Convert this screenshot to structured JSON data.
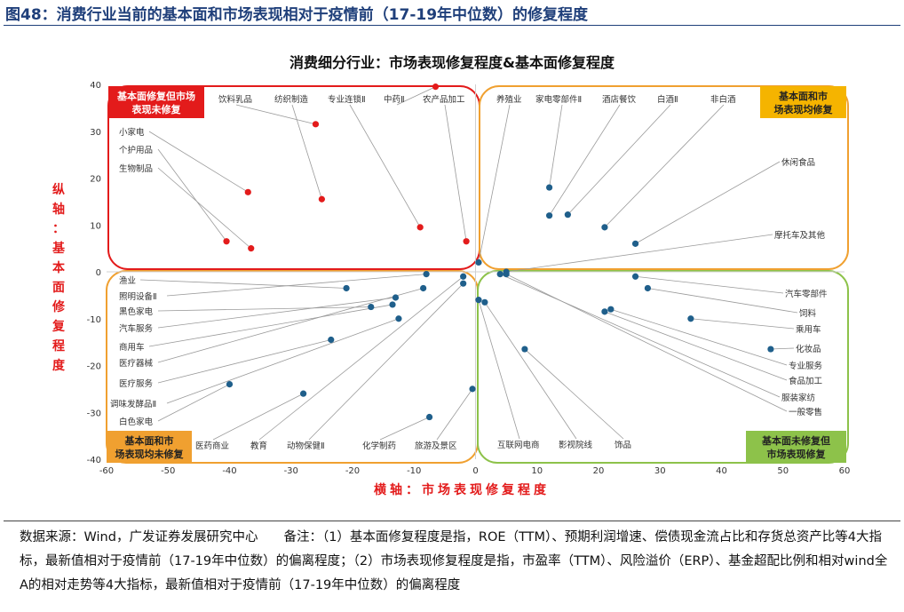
{
  "figure_title": "图48：消费行业当前的基本面和市场表现相对于疫情前（17-19年中位数）的修复程度",
  "notes": "数据来源：Wind，广发证券发展研究中心　　备注：（1）基本面修复程度是指，ROE（TTM）、预期利润增速、偿债现金流占比和存货总资产比等4大指标，最新值相对于疫情前（17-19年中位数）的偏离程度；（2）市场表现修复程度是指，市盈率（TTM）、风险溢价（ERP）、基金超配比例和相对wind全A的相对走势等4大指标，最新值相对于疫情前（17-19年中位数）的偏离程度",
  "colors": {
    "red": "#e31b1b",
    "blue": "#1f5f8b",
    "orange": "#f0a030",
    "green": "#8dc24a",
    "title_blue": "#1f3f7a"
  },
  "chart_data": {
    "type": "scatter",
    "title": "消费细分行业：市场表现修复程度&基本面修复程度",
    "xlabel": "横轴：市场表现修复程度",
    "ylabel": "纵轴：基本面修复程度",
    "xlim": [
      -60,
      60
    ],
    "ylim": [
      -40,
      40
    ],
    "xticks": [
      -60,
      -50,
      -40,
      -30,
      -20,
      -10,
      0,
      10,
      20,
      30,
      40,
      50,
      60
    ],
    "yticks": [
      -40,
      -30,
      -20,
      -10,
      0,
      10,
      20,
      30,
      40
    ],
    "grid": false,
    "quadrants": [
      {
        "label": "基本面修复但市场表现未修复",
        "color": "red"
      },
      {
        "label": "基本面和市场表现均修复",
        "color": "orange"
      },
      {
        "label": "基本面和市场表现均未修复",
        "color": "orange"
      },
      {
        "label": "基本面未修复但市场表现修复",
        "color": "green"
      }
    ],
    "points": [
      {
        "name": "饮料乳品",
        "x": -26,
        "y": 31.5,
        "color": "red"
      },
      {
        "name": "纺织制造",
        "x": -25,
        "y": 15.5,
        "color": "red"
      },
      {
        "name": "专业连锁Ⅱ",
        "x": -9,
        "y": 9.5,
        "color": "red"
      },
      {
        "name": "中药Ⅱ",
        "x": -6.5,
        "y": 39.5,
        "color": "red"
      },
      {
        "name": "农产品加工",
        "x": -1.5,
        "y": 6.5,
        "color": "red"
      },
      {
        "name": "小家电",
        "x": -37,
        "y": 17,
        "color": "red"
      },
      {
        "name": "个护用品",
        "x": -40.5,
        "y": 6.5,
        "color": "red"
      },
      {
        "name": "生物制品",
        "x": -36.5,
        "y": 5,
        "color": "red"
      },
      {
        "name": "养殖业",
        "x": 0.5,
        "y": 2,
        "color": "blue"
      },
      {
        "name": "家电零部件Ⅱ",
        "x": 12,
        "y": 18,
        "color": "blue"
      },
      {
        "name": "酒店餐饮",
        "x": 12,
        "y": 12,
        "color": "blue"
      },
      {
        "name": "白酒Ⅱ",
        "x": 15,
        "y": 12.2,
        "color": "blue"
      },
      {
        "name": "非白酒",
        "x": 21,
        "y": 9.5,
        "color": "blue"
      },
      {
        "name": "休闲食品",
        "x": 26,
        "y": 6,
        "color": "blue"
      },
      {
        "name": "摩托车及其他",
        "x": 5,
        "y": 0,
        "color": "blue"
      },
      {
        "name": "渔业",
        "x": -21,
        "y": -3.5,
        "color": "blue"
      },
      {
        "name": "照明设备Ⅱ",
        "x": -8,
        "y": -0.5,
        "color": "blue"
      },
      {
        "name": "黑色家电",
        "x": -17,
        "y": -7.5,
        "color": "blue"
      },
      {
        "name": "汽车服务",
        "x": -13,
        "y": -5.5,
        "color": "blue"
      },
      {
        "name": "商用车",
        "x": -13.5,
        "y": -7,
        "color": "blue"
      },
      {
        "name": "医疗器械",
        "x": -8.5,
        "y": -3.5,
        "color": "blue"
      },
      {
        "name": "医疗服务",
        "x": -23.5,
        "y": -14.5,
        "color": "blue"
      },
      {
        "name": "调味发酵品Ⅱ",
        "x": -12.5,
        "y": -10,
        "color": "blue"
      },
      {
        "name": "白色家电",
        "x": -40,
        "y": -24,
        "color": "blue"
      },
      {
        "name": "医药商业",
        "x": -28,
        "y": -26,
        "color": "blue"
      },
      {
        "name": "教育",
        "x": -2,
        "y": -1,
        "color": "blue"
      },
      {
        "name": "动物保健Ⅱ",
        "x": -2,
        "y": -2.5,
        "color": "blue"
      },
      {
        "name": "化学制药",
        "x": -7.5,
        "y": -31,
        "color": "blue"
      },
      {
        "name": "旅游及景区",
        "x": -0.5,
        "y": -25,
        "color": "blue"
      },
      {
        "name": "汽车零部件",
        "x": 26,
        "y": -1,
        "color": "blue"
      },
      {
        "name": "饲料",
        "x": 28,
        "y": -3.5,
        "color": "blue"
      },
      {
        "name": "乘用车",
        "x": 35,
        "y": -10,
        "color": "blue"
      },
      {
        "name": "化妆品",
        "x": 48,
        "y": -16.5,
        "color": "blue"
      },
      {
        "name": "专业服务",
        "x": 22,
        "y": -8,
        "color": "blue"
      },
      {
        "name": "食品加工",
        "x": 21,
        "y": -8.5,
        "color": "blue"
      },
      {
        "name": "服装家纺",
        "x": 4,
        "y": -0.5,
        "color": "blue"
      },
      {
        "name": "一般零售",
        "x": 5,
        "y": -0.5,
        "color": "blue"
      },
      {
        "name": "互联网电商",
        "x": 0.5,
        "y": -6,
        "color": "blue"
      },
      {
        "name": "影视院线",
        "x": 1.5,
        "y": -6.5,
        "color": "blue"
      },
      {
        "name": "饰品",
        "x": 8,
        "y": -16.5,
        "color": "blue"
      }
    ]
  }
}
